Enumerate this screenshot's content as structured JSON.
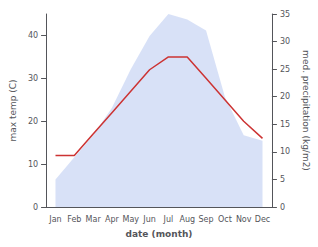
{
  "chart_data": {
    "type": "line",
    "xlabel": "date (month)",
    "ylabel": "max temp (C)",
    "y2label": "med. precipitation (kg/m2)",
    "categories": [
      "Jan",
      "Feb",
      "Mar",
      "Apr",
      "May",
      "Jun",
      "Jul",
      "Aug",
      "Sep",
      "Oct",
      "Nov",
      "Dec"
    ],
    "series": [
      {
        "type": "area",
        "axis": "y2",
        "color": "#b8c8f0",
        "values": [
          5,
          9,
          13,
          18,
          25,
          31,
          35,
          34,
          32,
          20,
          13,
          12
        ]
      },
      {
        "type": "line",
        "color": "#cc3333",
        "values": [
          12,
          12,
          17,
          22,
          27,
          32,
          35,
          35,
          30,
          25,
          20,
          16
        ]
      }
    ],
    "ylim": [
      0,
      45
    ],
    "yticks": [
      0,
      10,
      20,
      30,
      40
    ],
    "y2lim": [
      0,
      35
    ],
    "y2ticks": [
      0,
      5,
      10,
      15,
      20,
      25,
      30,
      35
    ],
    "grid": false
  }
}
